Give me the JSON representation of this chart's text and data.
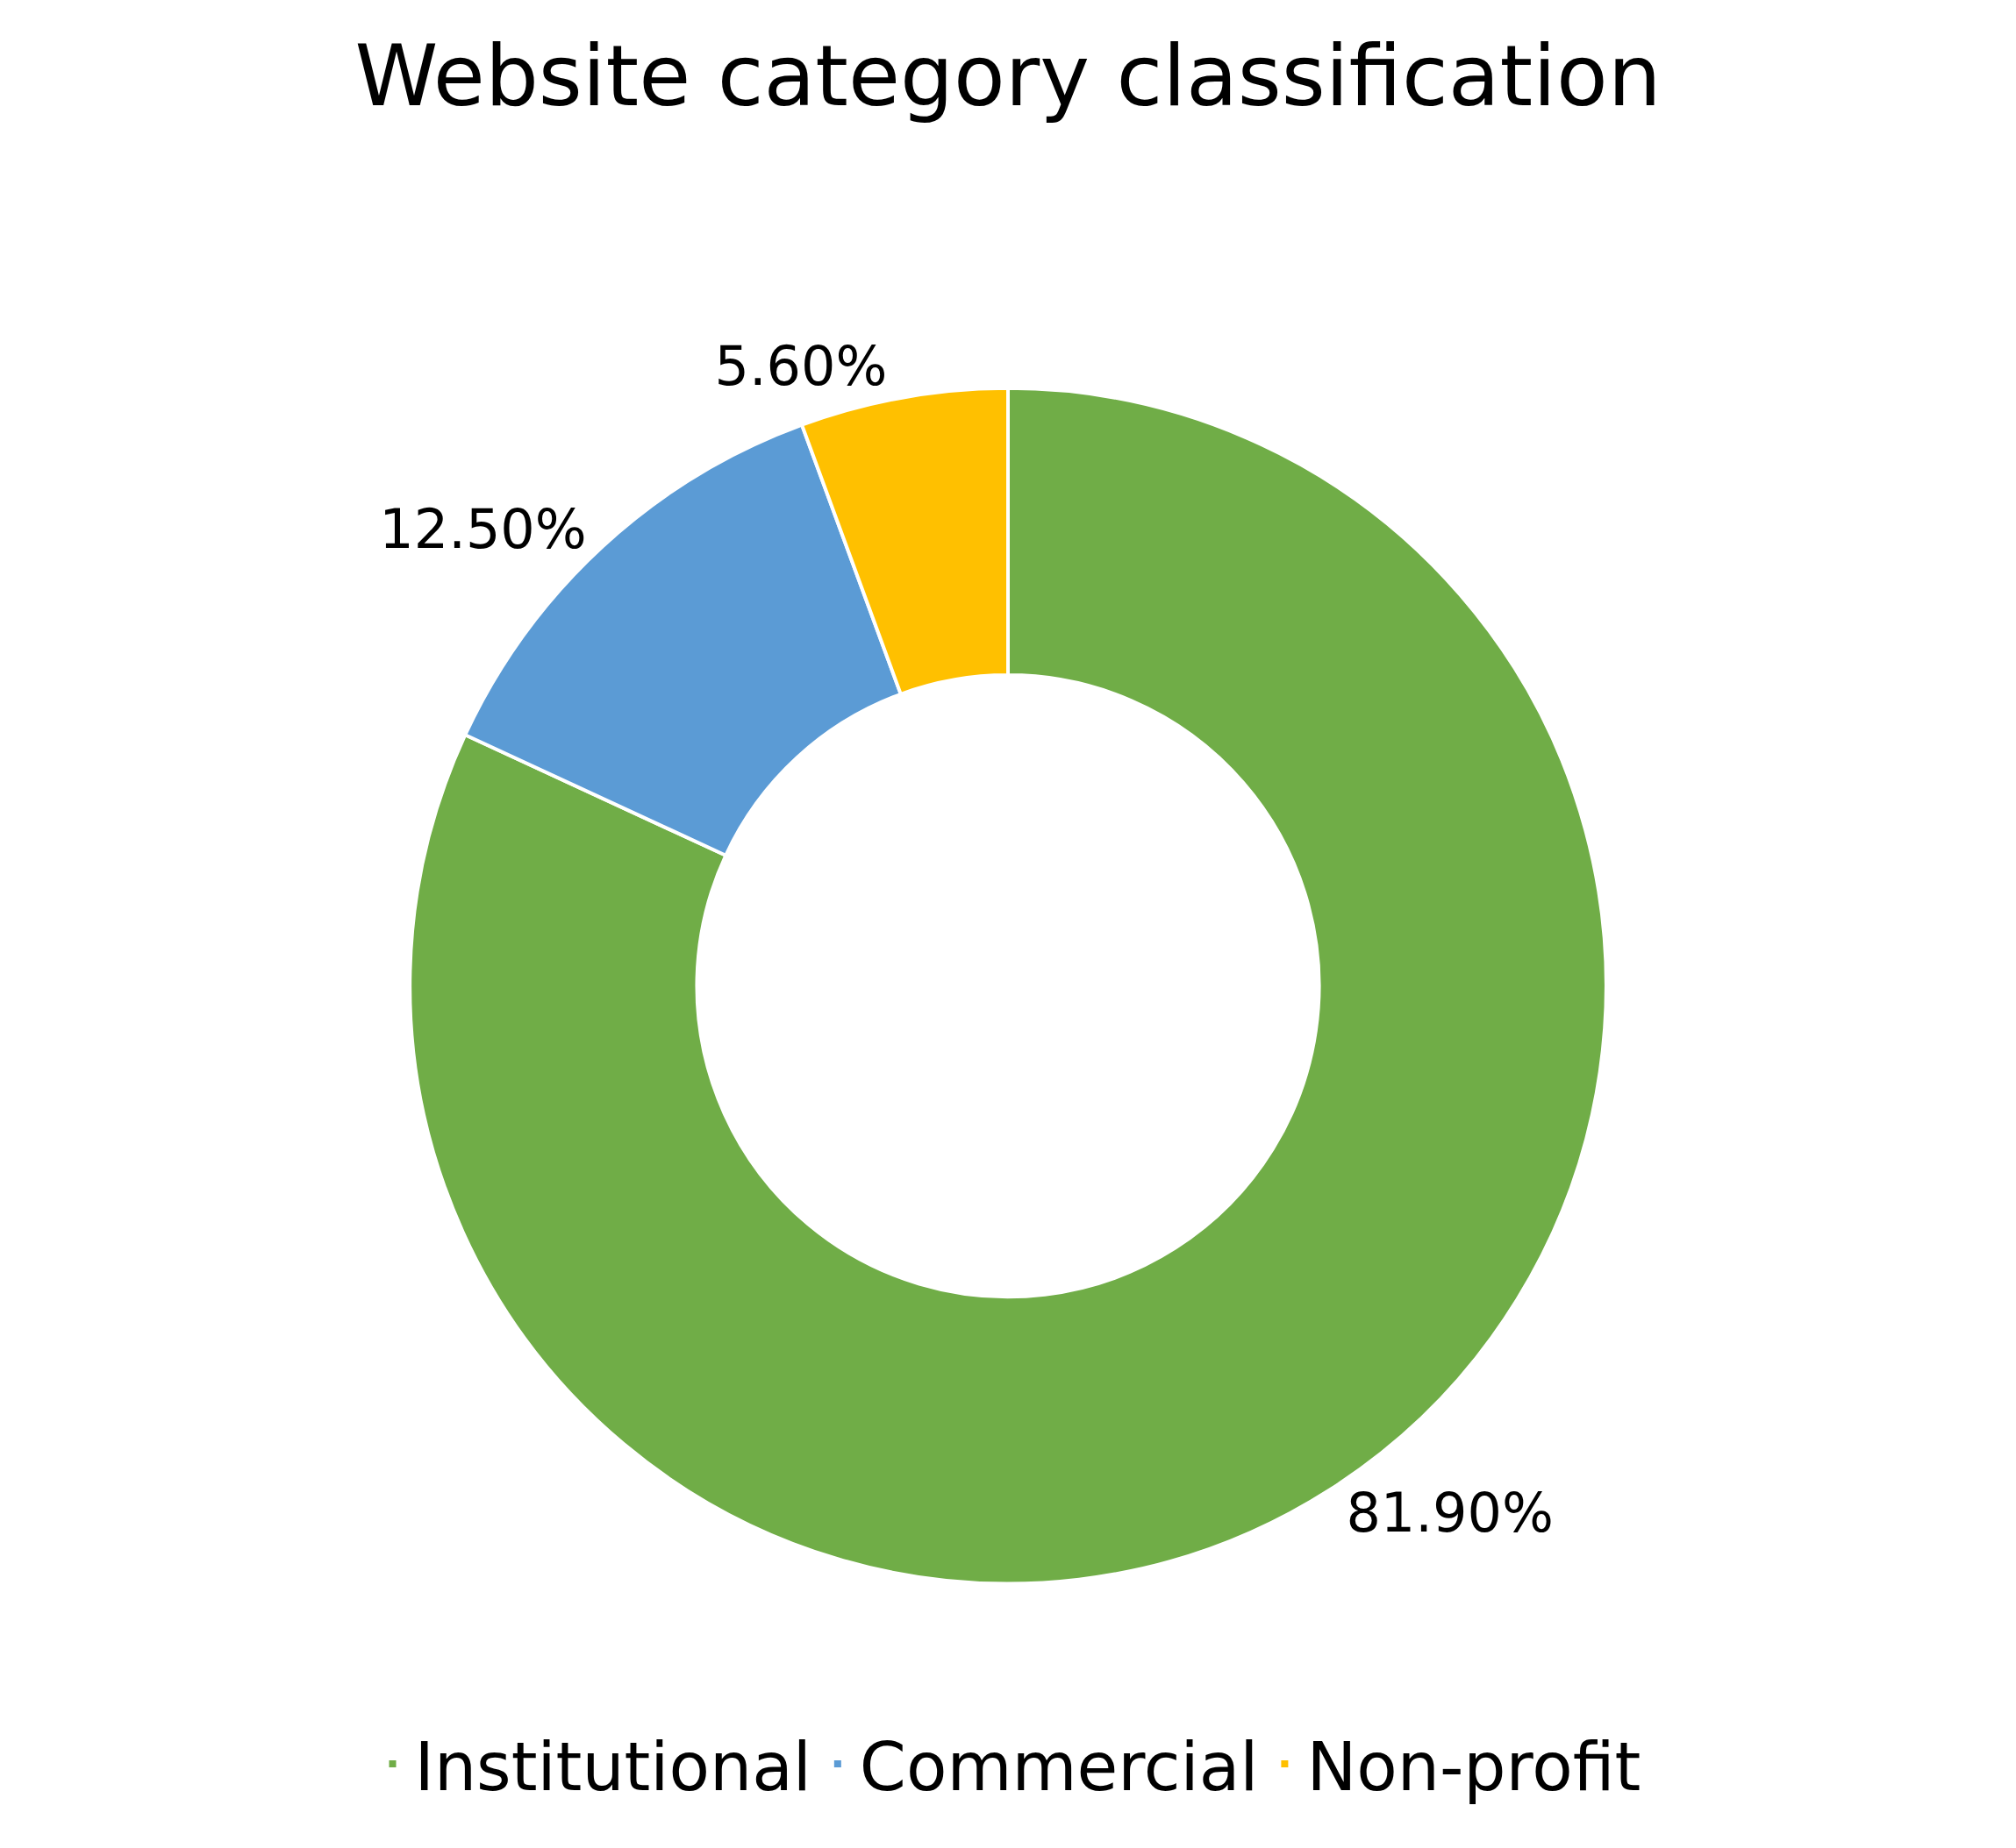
{
  "chart_data": {
    "type": "donut",
    "title": "Website category classification",
    "categories": [
      "Institutional",
      "Commercial",
      "Non-profit"
    ],
    "values": [
      81.9,
      12.5,
      5.6
    ],
    "colors": [
      "#70ad47",
      "#5b9bd5",
      "#ffc000"
    ],
    "value_labels": [
      "81.90%",
      "12.50%",
      "5.60%"
    ],
    "legend": "bottom"
  }
}
